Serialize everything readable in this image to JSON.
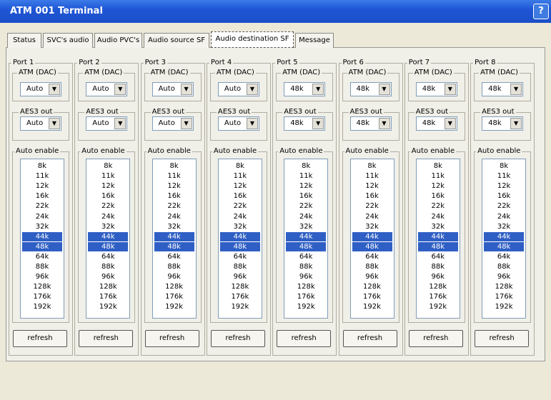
{
  "window": {
    "title": "ATM 001 Terminal",
    "help": "?"
  },
  "tabs": [
    "Status",
    "SVC's audio",
    "Audio PVC's",
    "Audio source SF",
    "Audio destination SF",
    "Message"
  ],
  "active_tab": "Audio destination SF",
  "group_labels": {
    "atm": "ATM (DAC)",
    "aes": "AES3 out",
    "auto": "Auto enable"
  },
  "rates": [
    "8k",
    "11k",
    "12k",
    "16k",
    "22k",
    "24k",
    "32k",
    "44k",
    "48k",
    "64k",
    "88k",
    "96k",
    "128k",
    "176k",
    "192k"
  ],
  "selected_rates": [
    "44k",
    "48k"
  ],
  "button": "refresh",
  "ports": [
    {
      "name": "Port 1",
      "atm": "Auto",
      "aes": "Auto"
    },
    {
      "name": "Port 2",
      "atm": "Auto",
      "aes": "Auto"
    },
    {
      "name": "Port 3",
      "atm": "Auto",
      "aes": "Auto"
    },
    {
      "name": "Port 4",
      "atm": "Auto",
      "aes": "Auto"
    },
    {
      "name": "Port 5",
      "atm": "48k",
      "aes": "48k"
    },
    {
      "name": "Port 6",
      "atm": "48k",
      "aes": "48k"
    },
    {
      "name": "Port 7",
      "atm": "48k",
      "aes": "48k"
    },
    {
      "name": "Port 8",
      "atm": "48k",
      "aes": "48k"
    }
  ]
}
